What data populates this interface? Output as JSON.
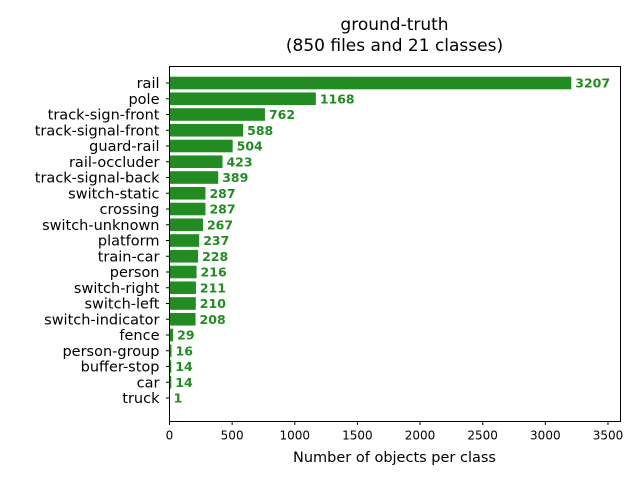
{
  "chart_data": {
    "type": "bar",
    "orientation": "horizontal",
    "title": "ground-truth",
    "subtitle": "(850 files and 21 classes)",
    "xlabel": "Number of objects per class",
    "ylabel": "",
    "xlim": [
      0,
      3600
    ],
    "xticks": [
      0,
      500,
      1000,
      1500,
      2000,
      2500,
      3000,
      3500
    ],
    "bar_color": "#228b22",
    "label_color": "#228b22",
    "grid": false,
    "categories": [
      "rail",
      "pole",
      "track-sign-front",
      "track-signal-front",
      "guard-rail",
      "rail-occluder",
      "track-signal-back",
      "switch-static",
      "crossing",
      "switch-unknown",
      "platform",
      "train-car",
      "person",
      "switch-right",
      "switch-left",
      "switch-indicator",
      "fence",
      "person-group",
      "buffer-stop",
      "car",
      "truck"
    ],
    "values": [
      3207,
      1168,
      762,
      588,
      504,
      423,
      389,
      287,
      287,
      267,
      237,
      228,
      216,
      211,
      210,
      208,
      29,
      16,
      14,
      14,
      1
    ]
  }
}
